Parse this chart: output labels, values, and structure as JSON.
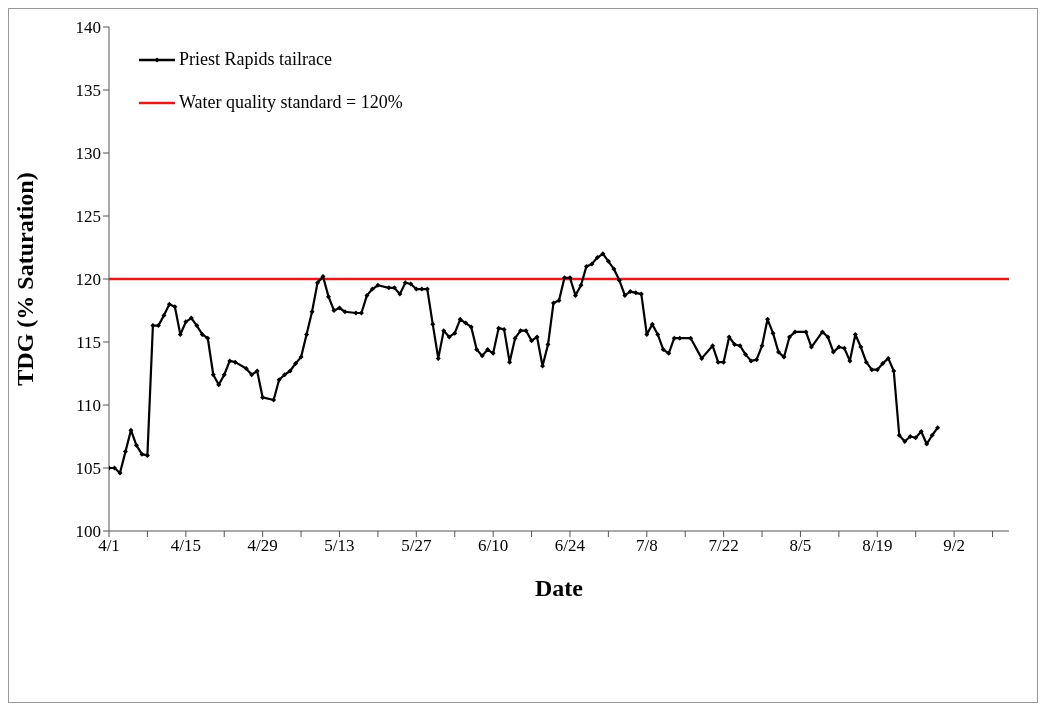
{
  "chart_data": {
    "type": "line",
    "xlabel": "Date",
    "ylabel": "TDG (% Saturation)",
    "xlim": [
      "--04-01",
      "--09-12"
    ],
    "xticks": [
      {
        "value": "--04-01",
        "label": "4/1"
      },
      {
        "value": "--04-08",
        "label": null
      },
      {
        "value": "--04-15",
        "label": "4/15"
      },
      {
        "value": "--04-22",
        "label": null
      },
      {
        "value": "--04-29",
        "label": "4/29"
      },
      {
        "value": "--05-06",
        "label": null
      },
      {
        "value": "--05-13",
        "label": "5/13"
      },
      {
        "value": "--05-20",
        "label": null
      },
      {
        "value": "--05-27",
        "label": "5/27"
      },
      {
        "value": "--06-03",
        "label": null
      },
      {
        "value": "--06-10",
        "label": "6/10"
      },
      {
        "value": "--06-17",
        "label": null
      },
      {
        "value": "--06-24",
        "label": "6/24"
      },
      {
        "value": "--07-01",
        "label": null
      },
      {
        "value": "--07-08",
        "label": "7/8"
      },
      {
        "value": "--07-15",
        "label": null
      },
      {
        "value": "--07-22",
        "label": "7/22"
      },
      {
        "value": "--07-29",
        "label": null
      },
      {
        "value": "--08-05",
        "label": "8/5"
      },
      {
        "value": "--08-12",
        "label": null
      },
      {
        "value": "--08-19",
        "label": "8/19"
      },
      {
        "value": "--08-26",
        "label": null
      },
      {
        "value": "--09-02",
        "label": "9/2"
      },
      {
        "value": "--09-09",
        "label": null
      }
    ],
    "ylim": [
      100,
      140
    ],
    "yticks": [
      100,
      105,
      110,
      115,
      120,
      125,
      130,
      135,
      140
    ],
    "grid": false,
    "legend": "top left",
    "marker": "diamond",
    "line_style": "solid",
    "x": [
      "--04-01",
      "--04-02",
      "--04-03",
      "--04-04",
      "--04-05",
      "--04-06",
      "--04-07",
      "--04-08",
      "--04-09",
      "--04-10",
      "--04-11",
      "--04-12",
      "--04-13",
      "--04-14",
      "--04-15",
      "--04-16",
      "--04-17",
      "--04-18",
      "--04-19",
      "--04-20",
      "--04-21",
      "--04-22",
      "--04-23",
      "--04-24",
      "--04-26",
      "--04-27",
      "--04-28",
      "--04-29",
      "--05-01",
      "--05-02",
      "--05-03",
      "--05-04",
      "--05-05",
      "--05-06",
      "--05-07",
      "--05-08",
      "--05-09",
      "--05-10",
      "--05-11",
      "--05-12",
      "--05-13",
      "--05-14",
      "--05-16",
      "--05-17",
      "--05-18",
      "--05-19",
      "--05-20",
      "--05-22",
      "--05-23",
      "--05-24",
      "--05-25",
      "--05-26",
      "--05-27",
      "--05-28",
      "--05-29",
      "--05-30",
      "--05-31",
      "--06-01",
      "--06-02",
      "--06-03",
      "--06-04",
      "--06-05",
      "--06-06",
      "--06-07",
      "--06-08",
      "--06-09",
      "--06-10",
      "--06-11",
      "--06-12",
      "--06-13",
      "--06-14",
      "--06-15",
      "--06-16",
      "--06-17",
      "--06-18",
      "--06-19",
      "--06-20",
      "--06-21",
      "--06-22",
      "--06-23",
      "--06-24",
      "--06-25",
      "--06-26",
      "--06-27",
      "--06-28",
      "--06-29",
      "--06-30",
      "--07-01",
      "--07-02",
      "--07-03",
      "--07-04",
      "--07-05",
      "--07-06",
      "--07-07",
      "--07-08",
      "--07-09",
      "--07-10",
      "--07-11",
      "--07-12",
      "--07-13",
      "--07-14",
      "--07-16",
      "--07-18",
      "--07-20",
      "--07-21",
      "--07-22",
      "--07-23",
      "--07-24",
      "--07-25",
      "--07-26",
      "--07-27",
      "--07-28",
      "--07-29",
      "--07-30",
      "--07-31",
      "--08-01",
      "--08-02",
      "--08-03",
      "--08-04",
      "--08-06",
      "--08-07",
      "--08-09",
      "--08-10",
      "--08-11",
      "--08-12",
      "--08-13",
      "--08-14",
      "--08-15",
      "--08-16",
      "--08-17",
      "--08-18",
      "--08-19",
      "--08-20",
      "--08-21",
      "--08-22",
      "--08-23",
      "--08-24",
      "--08-25",
      "--08-26",
      "--08-27",
      "--08-28",
      "--08-29",
      "--08-30"
    ],
    "series": [
      {
        "name": "Priest Rapids tailrace",
        "color": "#000000",
        "values": [
          105.0,
          105.0,
          104.6,
          106.3,
          108.0,
          106.8,
          106.1,
          106.0,
          116.3,
          116.3,
          117.1,
          118.0,
          117.8,
          115.6,
          116.6,
          116.9,
          116.3,
          115.6,
          115.3,
          112.4,
          111.6,
          112.4,
          113.5,
          113.4,
          112.9,
          112.4,
          112.7,
          110.6,
          110.4,
          112.0,
          112.4,
          112.7,
          113.3,
          113.8,
          115.6,
          117.4,
          119.7,
          120.2,
          118.6,
          117.5,
          117.7,
          117.4,
          117.3,
          117.3,
          118.7,
          119.2,
          119.5,
          119.3,
          119.3,
          118.8,
          119.7,
          119.6,
          119.2,
          119.2,
          119.2,
          116.4,
          113.7,
          115.9,
          115.4,
          115.7,
          116.8,
          116.5,
          116.2,
          114.4,
          113.9,
          114.4,
          114.1,
          116.1,
          116.0,
          113.4,
          115.3,
          115.9,
          115.9,
          115.1,
          115.4,
          113.1,
          114.8,
          118.1,
          118.3,
          120.1,
          120.1,
          118.7,
          119.5,
          121.0,
          121.2,
          121.7,
          122.0,
          121.4,
          120.8,
          119.9,
          118.7,
          119.0,
          118.9,
          118.8,
          115.6,
          116.4,
          115.6,
          114.4,
          114.1,
          115.3,
          115.3,
          115.3,
          113.7,
          114.7,
          113.4,
          113.4,
          115.4,
          114.8,
          114.7,
          114.0,
          113.5,
          113.6,
          114.7,
          116.8,
          115.7,
          114.2,
          113.8,
          115.4,
          115.8,
          115.8,
          114.6,
          115.8,
          115.4,
          114.2,
          114.6,
          114.5,
          113.5,
          115.6,
          114.6,
          113.4,
          112.8,
          112.8,
          113.3,
          113.7,
          112.7,
          107.6,
          107.1,
          107.5,
          107.4,
          107.9,
          106.9,
          107.6,
          108.2
        ]
      }
    ],
    "ref_lines": [
      {
        "axis": "y",
        "value": 120,
        "label": "Water quality standard = 120%",
        "color": "#e31a1c",
        "line_style": "solid"
      }
    ]
  }
}
